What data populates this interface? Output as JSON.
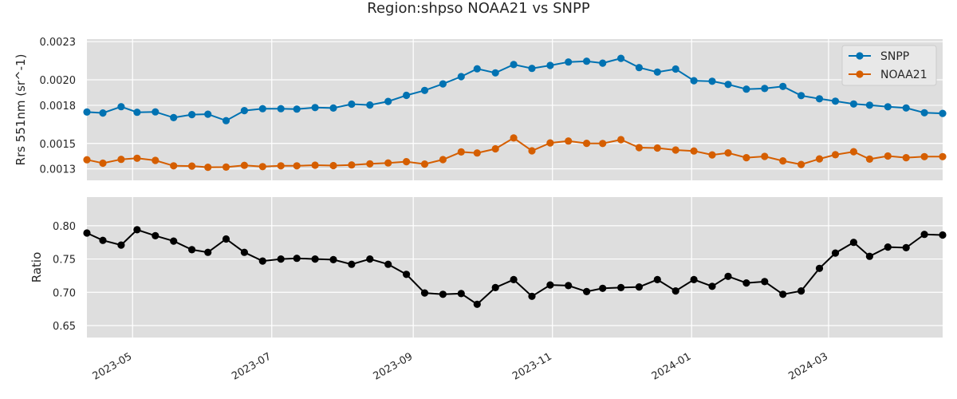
{
  "chart_data": {
    "title": "Region:shpso NOAA21 vs SNPP",
    "type": "line",
    "x": [
      "2023-04-11",
      "2023-04-18",
      "2023-04-26",
      "2023-05-03",
      "2023-05-11",
      "2023-05-19",
      "2023-05-27",
      "2023-06-03",
      "2023-06-11",
      "2023-06-19",
      "2023-06-27",
      "2023-07-05",
      "2023-07-12",
      "2023-07-20",
      "2023-07-28",
      "2023-08-05",
      "2023-08-13",
      "2023-08-21",
      "2023-08-29",
      "2023-09-06",
      "2023-09-14",
      "2023-09-22",
      "2023-09-29",
      "2023-10-07",
      "2023-10-15",
      "2023-10-23",
      "2023-10-31",
      "2023-11-08",
      "2023-11-16",
      "2023-11-23",
      "2023-12-01",
      "2023-12-09",
      "2023-12-17",
      "2023-12-25",
      "2024-01-02",
      "2024-01-10",
      "2024-01-17",
      "2024-01-25",
      "2024-02-02",
      "2024-02-10",
      "2024-02-18",
      "2024-02-26",
      "2024-03-04",
      "2024-03-12",
      "2024-03-19",
      "2024-03-27",
      "2024-04-04",
      "2024-04-12",
      "2024-04-20"
    ],
    "xlim": [
      "2023-04-11",
      "2024-04-20"
    ],
    "xticks": [
      "2023-05",
      "2023-07",
      "2023-09",
      "2023-11",
      "2024-01",
      "2024-03"
    ],
    "panels": [
      {
        "ylabel": "Rrs 551nm (sr^-1)",
        "ylim": [
          0.00121,
          0.00232
        ],
        "yticks": [
          "0.0013",
          "0.0015",
          "0.0018",
          "0.0020",
          "0.0023"
        ],
        "ytick_values": [
          0.0013,
          0.0015,
          0.0018,
          0.002,
          0.0023
        ],
        "legend": "top-right",
        "series": [
          {
            "name": "SNPP",
            "color": "#0072b2",
            "values": [
              0.001747,
              0.001739,
              0.001789,
              0.001745,
              0.001748,
              0.001703,
              0.001727,
              0.00173,
              0.001679,
              0.001758,
              0.001773,
              0.001773,
              0.00177,
              0.001782,
              0.001778,
              0.001809,
              0.001802,
              0.00183,
              0.001878,
              0.001917,
              0.001968,
              0.002025,
              0.002087,
              0.002055,
              0.00212,
              0.00209,
              0.002113,
              0.00214,
              0.002146,
              0.002131,
              0.002169,
              0.002096,
              0.002061,
              0.002085,
              0.001993,
              0.001989,
              0.001964,
              0.001927,
              0.001932,
              0.001948,
              0.001876,
              0.001851,
              0.001832,
              0.00181,
              0.001801,
              0.001788,
              0.001779,
              0.001741,
              0.001736
            ]
          },
          {
            "name": "NOAA21",
            "color": "#d55e00",
            "values": [
              0.001372,
              0.001345,
              0.001375,
              0.001384,
              0.001367,
              0.001324,
              0.001322,
              0.001313,
              0.001314,
              0.001328,
              0.001318,
              0.001324,
              0.001324,
              0.001329,
              0.001326,
              0.001331,
              0.00134,
              0.001347,
              0.001357,
              0.001338,
              0.001373,
              0.001433,
              0.001425,
              0.001458,
              0.001543,
              0.001442,
              0.001504,
              0.001519,
              0.001501,
              0.0015,
              0.00153,
              0.001467,
              0.001464,
              0.001448,
              0.001441,
              0.00141,
              0.001426,
              0.001388,
              0.001398,
              0.001363,
              0.001335,
              0.001379,
              0.001411,
              0.001435,
              0.001377,
              0.001401,
              0.001388,
              0.001396,
              0.001396
            ]
          }
        ]
      },
      {
        "ylabel": "Ratio",
        "ylim": [
          0.632,
          0.843
        ],
        "yticks": [
          "0.65",
          "0.70",
          "0.75",
          "0.80"
        ],
        "ytick_values": [
          0.65,
          0.7,
          0.75,
          0.8
        ],
        "series": [
          {
            "name": "",
            "color": "#000000",
            "values": [
              0.789,
              0.778,
              0.771,
              0.794,
              0.785,
              0.777,
              0.764,
              0.76,
              0.78,
              0.76,
              0.747,
              0.75,
              0.751,
              0.75,
              0.749,
              0.742,
              0.75,
              0.742,
              0.727,
              0.699,
              0.697,
              0.698,
              0.682,
              0.707,
              0.719,
              0.694,
              0.711,
              0.71,
              0.701,
              0.706,
              0.707,
              0.708,
              0.719,
              0.702,
              0.719,
              0.709,
              0.724,
              0.714,
              0.716,
              0.697,
              0.702,
              0.736,
              0.759,
              0.775,
              0.754,
              0.768,
              0.767,
              0.787,
              0.786
            ]
          }
        ]
      }
    ]
  }
}
